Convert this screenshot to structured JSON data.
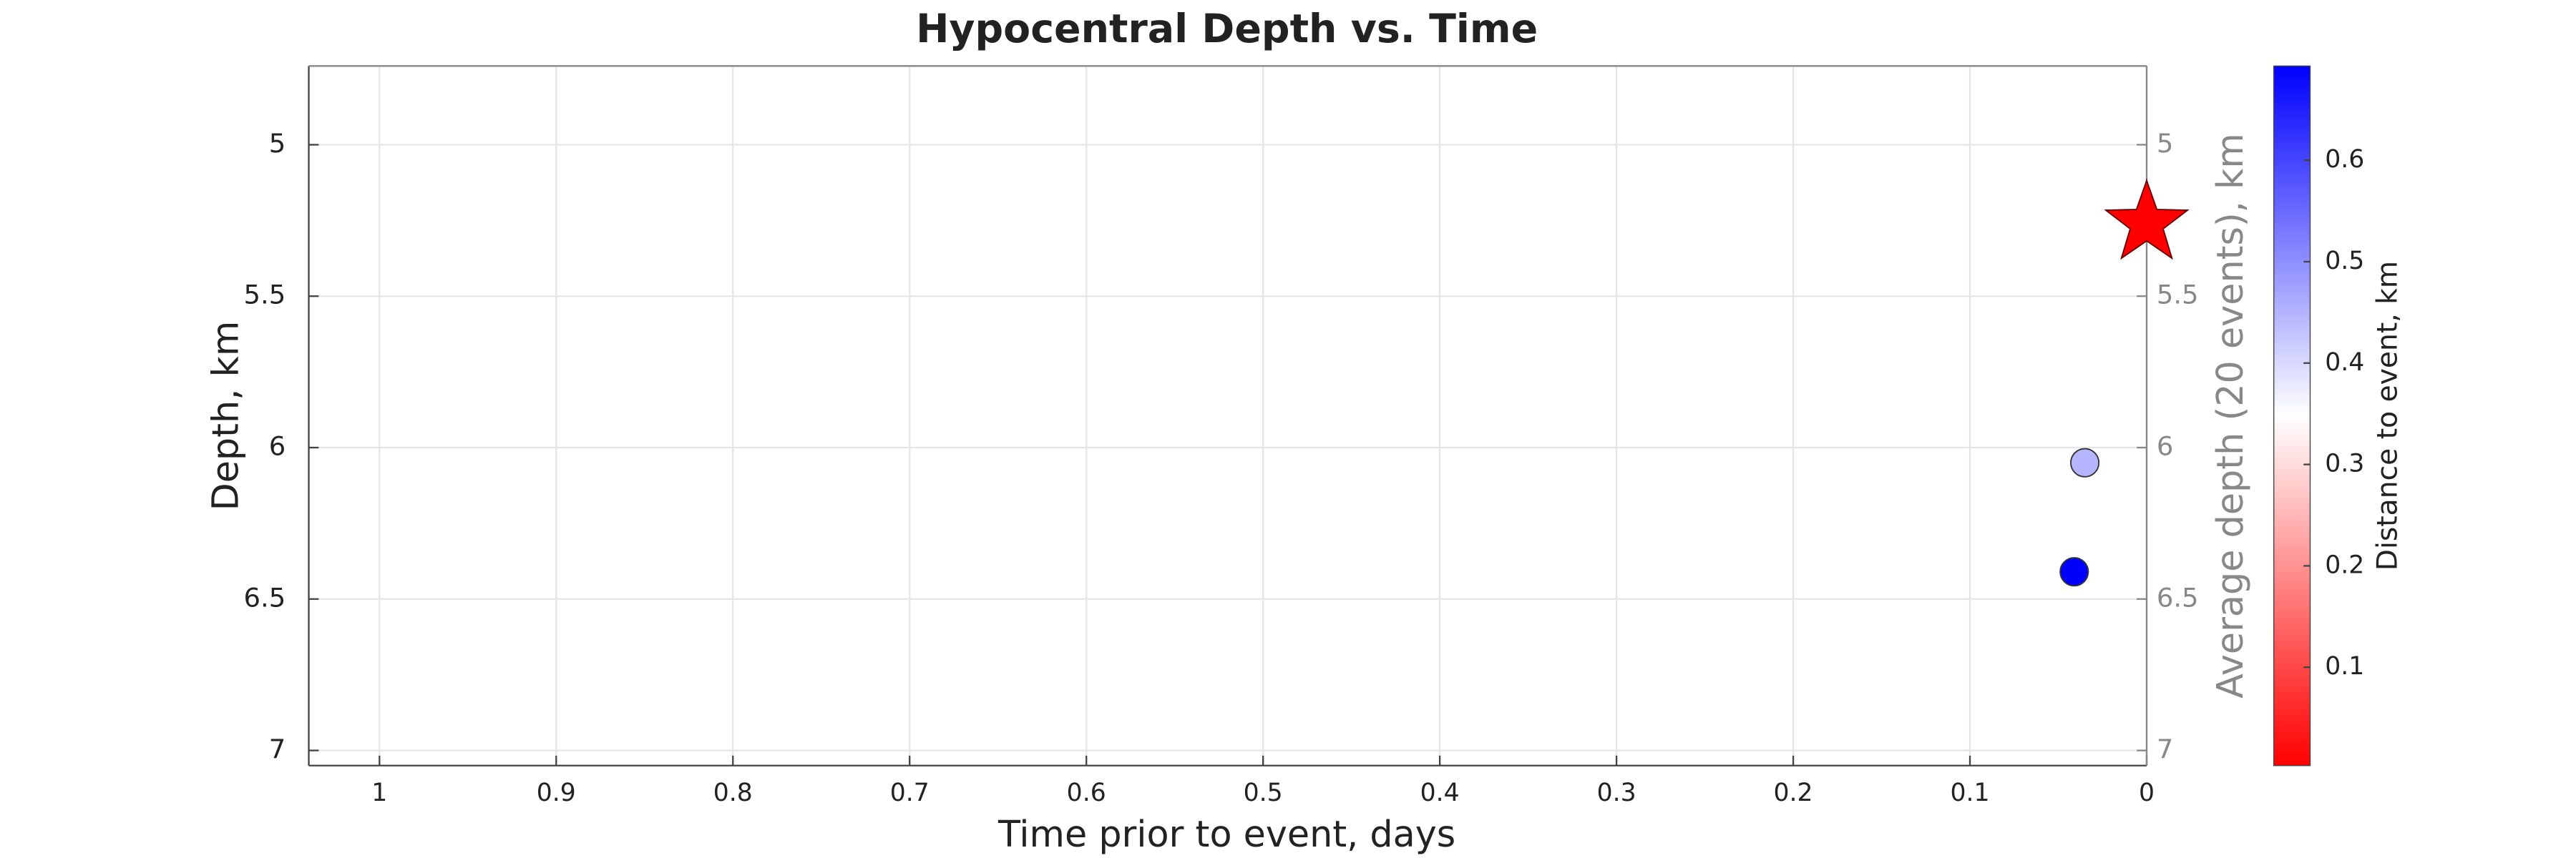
{
  "chart_data": {
    "type": "scatter",
    "title": "Hypocentral Depth vs. Time",
    "x_label": "Time prior to event, days",
    "y_label": "Depth, km",
    "y2_label": "Average depth (20 events), km",
    "colorbar_label": "Distance to event, km",
    "xlim": [
      1.04,
      0
    ],
    "xticks": [
      1,
      0.9,
      0.8,
      0.7,
      0.6,
      0.5,
      0.4,
      0.3,
      0.2,
      0.1,
      0
    ],
    "ylim": [
      4.74,
      7.05
    ],
    "yticks": [
      5,
      5.5,
      6,
      6.5,
      7
    ],
    "y2lim": [
      4.74,
      7.05
    ],
    "y2ticks": [
      5,
      5.5,
      6,
      6.5,
      7
    ],
    "y_reversed": true,
    "grid": true,
    "clim": [
      0.003,
      0.693
    ],
    "cticks": [
      0.1,
      0.2,
      0.3,
      0.4,
      0.5,
      0.6
    ],
    "series": [
      {
        "x": [
          0.035,
          0.041
        ],
        "values": [
          6.05,
          6.41
        ],
        "distance": [
          0.45,
          0.69
        ],
        "colors": [
          "#b4b4ff",
          "#0000ff"
        ]
      }
    ],
    "event": {
      "x": 0,
      "y": 5.26,
      "color": "#ff0000"
    }
  }
}
